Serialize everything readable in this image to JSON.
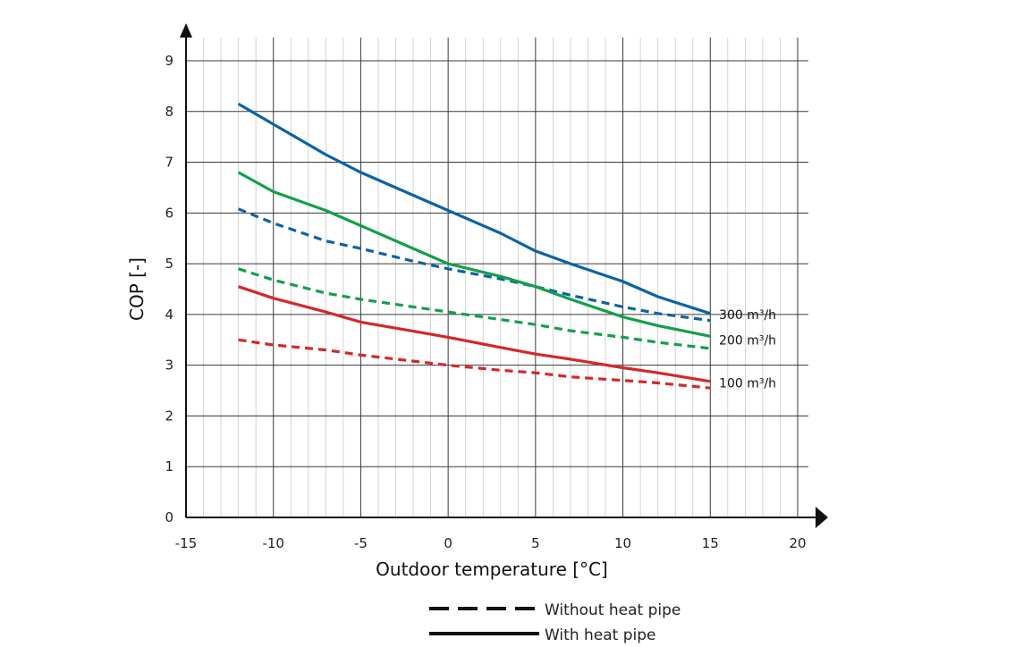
{
  "chart_data": {
    "type": "line",
    "title": "",
    "xlabel": "Outdoor temperature [°C]",
    "ylabel": "COP [-]",
    "xlim": [
      -15,
      20
    ],
    "ylim": [
      0,
      9
    ],
    "x_ticks": [
      -15,
      -10,
      -5,
      0,
      5,
      10,
      15,
      20
    ],
    "y_ticks": [
      0,
      1,
      2,
      3,
      4,
      5,
      6,
      7,
      8,
      9
    ],
    "grid": true,
    "legend": {
      "placement": "bottom-center",
      "entries": [
        {
          "label": "Without heat pipe",
          "style": "dashed"
        },
        {
          "label": "With heat pipe",
          "style": "solid"
        }
      ]
    },
    "series": [
      {
        "label": "300 m³/h",
        "color": "#0b63a5",
        "style": "solid",
        "x": [
          -12,
          -10,
          -7,
          -5,
          -2,
          0,
          3,
          5,
          7,
          10,
          12,
          15
        ],
        "y": [
          8.15,
          7.75,
          7.15,
          6.8,
          6.35,
          6.05,
          5.6,
          5.25,
          5.0,
          4.65,
          4.35,
          4.02
        ]
      },
      {
        "label": "300 m³/h",
        "color": "#0b63a5",
        "style": "dashed",
        "x": [
          -12,
          -10,
          -7,
          -5,
          -2,
          0,
          3,
          5,
          7,
          10,
          12,
          15
        ],
        "y": [
          6.08,
          5.8,
          5.45,
          5.3,
          5.05,
          4.9,
          4.7,
          4.55,
          4.38,
          4.15,
          4.02,
          3.88
        ]
      },
      {
        "label": "200 m³/h",
        "color": "#13a04a",
        "style": "solid",
        "x": [
          -12,
          -10,
          -7,
          -5,
          -2,
          0,
          3,
          5,
          7,
          10,
          12,
          15
        ],
        "y": [
          6.8,
          6.42,
          6.05,
          5.75,
          5.3,
          5.0,
          4.75,
          4.55,
          4.3,
          3.95,
          3.78,
          3.57
        ]
      },
      {
        "label": "200 m³/h",
        "color": "#13a04a",
        "style": "dashed",
        "x": [
          -12,
          -10,
          -7,
          -5,
          -2,
          0,
          3,
          5,
          7,
          10,
          12,
          15
        ],
        "y": [
          4.9,
          4.68,
          4.42,
          4.3,
          4.15,
          4.05,
          3.9,
          3.8,
          3.68,
          3.55,
          3.45,
          3.33
        ]
      },
      {
        "label": "100 m³/h",
        "color": "#d5262b",
        "style": "solid",
        "x": [
          -12,
          -10,
          -7,
          -5,
          -2,
          0,
          3,
          5,
          7,
          10,
          12,
          15
        ],
        "y": [
          4.55,
          4.32,
          4.05,
          3.85,
          3.67,
          3.55,
          3.35,
          3.22,
          3.12,
          2.95,
          2.85,
          2.68
        ]
      },
      {
        "label": "100 m³/h",
        "color": "#d5262b",
        "style": "dashed",
        "x": [
          -12,
          -10,
          -7,
          -5,
          -2,
          0,
          3,
          5,
          7,
          10,
          12,
          15
        ],
        "y": [
          3.5,
          3.4,
          3.3,
          3.2,
          3.08,
          3.0,
          2.9,
          2.85,
          2.77,
          2.7,
          2.65,
          2.55
        ]
      }
    ],
    "annotations": [
      {
        "text": "300 m³/h",
        "x": 15.5,
        "y": 4.0
      },
      {
        "text": "200 m³/h",
        "x": 15.5,
        "y": 3.5
      },
      {
        "text": "100 m³/h",
        "x": 15.5,
        "y": 2.65
      }
    ]
  }
}
